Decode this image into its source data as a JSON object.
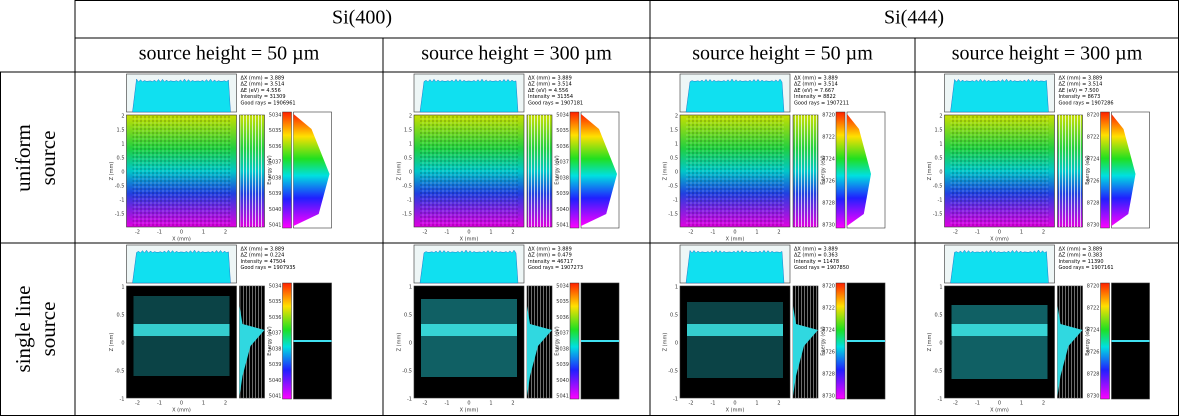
{
  "header": {
    "groups": [
      "Si(400)",
      "Si(444)"
    ],
    "columns": [
      "source height = 50 µm",
      "source height = 300 µm",
      "source height = 50 µm",
      "source height = 300 µm"
    ]
  },
  "axes": {
    "x_label": "X (mm)",
    "z_label": "Z (mm)",
    "energy_label": "Energy (eV)",
    "x_ticks": [
      "-2",
      "-1",
      "0",
      "1",
      "2"
    ],
    "energy_ticks": [
      [
        "5034",
        "5035",
        "5036",
        "5037",
        "5038",
        "5039",
        "5040",
        "5041"
      ],
      [
        "8720",
        "8722",
        "8724",
        "8726",
        "8728",
        "8730"
      ]
    ]
  },
  "rows": [
    {
      "label": [
        "uniform",
        "source"
      ],
      "z_ticks": [
        "2",
        "1.5",
        "1",
        "0.5",
        "0",
        "-0.5",
        "-1",
        "-1.5"
      ],
      "panels": [
        {
          "stats": [
            "ΔX (mm) = 3.889",
            "ΔZ (mm) = 3.514",
            "ΔE (eV) = 4.556",
            "Intensity = 31309",
            "Good rays  = 1906961"
          ]
        },
        {
          "stats": [
            "ΔX (mm) = 3.889",
            "ΔZ (mm) = 3.514",
            "ΔE (eV) = 4.556",
            "Intensity = 31354",
            "Good rays  = 1907181"
          ]
        },
        {
          "stats": [
            "ΔX (mm) = 3.889",
            "ΔZ (mm) = 3.514",
            "ΔE (eV) = 7.667",
            "Intensity = 8822",
            "Good rays  = 1907211"
          ]
        },
        {
          "stats": [
            "ΔX (mm) = 3.889",
            "ΔZ (mm) = 3.514",
            "ΔE (eV) = 7.500",
            "Intensity = 8673",
            "Good rays  = 1907286"
          ]
        }
      ]
    },
    {
      "label": [
        "single line",
        "source"
      ],
      "z_ticks": [
        "1",
        "0.5",
        "0",
        "-0.5",
        "-1"
      ],
      "panels": [
        {
          "stats": [
            "ΔX (mm) = 3.889",
            "ΔZ (mm) = 0.224",
            "Intensity = 47504",
            "Good rays  = 1907935"
          ]
        },
        {
          "stats": [
            "ΔX (mm) = 3.889",
            "ΔZ (mm) = 0.479",
            "Intensity = 46717",
            "Good rays  = 1907273"
          ]
        },
        {
          "stats": [
            "ΔX (mm) = 3.889",
            "ΔZ (mm) = 0.363",
            "Intensity = 11478",
            "Good rays  = 1907850"
          ]
        },
        {
          "stats": [
            "ΔX (mm) = 3.889",
            "ΔZ (mm) = 0.383",
            "Intensity = 11390",
            "Good rays  = 1907161"
          ]
        }
      ]
    }
  ]
}
